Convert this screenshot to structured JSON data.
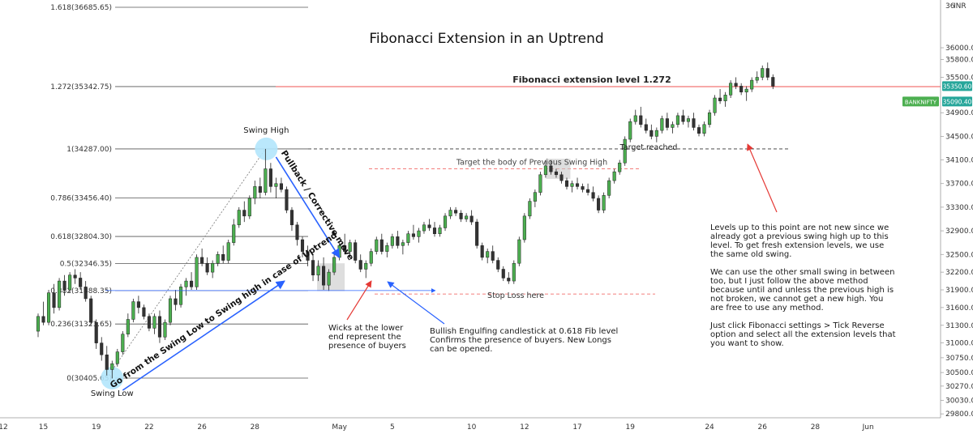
{
  "chart_data": {
    "type": "candlestick",
    "title": "Fibonacci Extension in an Uptrend",
    "symbol": "BANKNIFTY",
    "currency": "INR",
    "price_axis": {
      "ylim": [
        29800,
        36800
      ],
      "ticks": [
        {
          "value": 36000,
          "label": "36000.00"
        },
        {
          "value": 35800,
          "label": "35800.00"
        },
        {
          "value": 35500,
          "label": "35500.00"
        },
        {
          "value": 34900,
          "label": "34900.00"
        },
        {
          "value": 34500,
          "label": "34500.00"
        },
        {
          "value": 34100,
          "label": "34100.00"
        },
        {
          "value": 33700,
          "label": "33700.00"
        },
        {
          "value": 33300,
          "label": "33300.00"
        },
        {
          "value": 32900,
          "label": "32900.00"
        },
        {
          "value": 32500,
          "label": "32500.00"
        },
        {
          "value": 32200,
          "label": "32200.00"
        },
        {
          "value": 31900,
          "label": "31900.00"
        },
        {
          "value": 31600,
          "label": "31600.00"
        },
        {
          "value": 31300,
          "label": "31300.00"
        },
        {
          "value": 31000,
          "label": "31000.00"
        },
        {
          "value": 30750,
          "label": "30750.00"
        },
        {
          "value": 30500,
          "label": "30500.00"
        },
        {
          "value": 30270,
          "label": "30270.00"
        },
        {
          "value": 30030,
          "label": "30030.00"
        },
        {
          "value": 29800,
          "label": "29800.00"
        }
      ],
      "top_label": "36",
      "price_tags": [
        {
          "text": "35350.60",
          "value": 35350.6,
          "color": "#26a69a"
        },
        {
          "text": "BANKNIFTY",
          "value": 35090,
          "color": "#4caf50"
        },
        {
          "text": "35090.40",
          "value": 35090.4,
          "color": "#26a69a"
        }
      ]
    },
    "time_axis": {
      "ticks": [
        {
          "i": -8,
          "label": "12"
        },
        {
          "i": 1,
          "label": "15"
        },
        {
          "i": 11,
          "label": "19"
        },
        {
          "i": 21,
          "label": "22"
        },
        {
          "i": 31,
          "label": "26"
        },
        {
          "i": 41,
          "label": "28"
        },
        {
          "i": 57,
          "label": "May"
        },
        {
          "i": 67,
          "label": "5"
        },
        {
          "i": 82,
          "label": "10"
        },
        {
          "i": 92,
          "label": "12"
        },
        {
          "i": 102,
          "label": "17"
        },
        {
          "i": 112,
          "label": "19"
        },
        {
          "i": 127,
          "label": "24"
        },
        {
          "i": 137,
          "label": "26"
        },
        {
          "i": 147,
          "label": "28"
        },
        {
          "i": 157,
          "label": "Jun"
        }
      ]
    },
    "fib_levels": [
      {
        "label": "1.618(36685.65)",
        "value": 36685.65
      },
      {
        "label": "1.272(35342.75)",
        "value": 35342.75
      },
      {
        "label": "1(34287.00)",
        "value": 34287.0
      },
      {
        "label": "0.786(33456.40)",
        "value": 33456.4
      },
      {
        "label": "0.618(32804.30)",
        "value": 32804.3
      },
      {
        "label": "0.5(32346.35)",
        "value": 32346.35
      },
      {
        "label": "0.382(31888.35)",
        "value": 31888.35
      },
      {
        "label": "0.236(31321.65)",
        "value": 31321.65
      },
      {
        "label": "0(30405.65)",
        "value": 30405.65
      }
    ],
    "candles": [
      [
        31200,
        31500,
        31100,
        31450
      ],
      [
        31450,
        31700,
        31300,
        31350
      ],
      [
        31350,
        31900,
        31300,
        31850
      ],
      [
        31850,
        32000,
        31500,
        31600
      ],
      [
        31600,
        32100,
        31550,
        32050
      ],
      [
        32050,
        32150,
        31800,
        31900
      ],
      [
        31900,
        32200,
        31850,
        32150
      ],
      [
        32150,
        32250,
        32000,
        32100
      ],
      [
        32100,
        32200,
        31900,
        31950
      ],
      [
        31950,
        32050,
        31700,
        31750
      ],
      [
        31750,
        31800,
        31300,
        31350
      ],
      [
        31350,
        31400,
        30900,
        31000
      ],
      [
        31000,
        31100,
        30700,
        30800
      ],
      [
        30800,
        30950,
        30450,
        30550
      ],
      [
        30550,
        30700,
        30400,
        30650
      ],
      [
        30650,
        30900,
        30600,
        30850
      ],
      [
        30850,
        31200,
        30800,
        31150
      ],
      [
        31150,
        31500,
        31100,
        31400
      ],
      [
        31400,
        31750,
        31350,
        31700
      ],
      [
        31700,
        31800,
        31500,
        31600
      ],
      [
        31600,
        31650,
        31400,
        31450
      ],
      [
        31450,
        31500,
        31200,
        31250
      ],
      [
        31250,
        31500,
        31150,
        31450
      ],
      [
        31450,
        31550,
        31000,
        31100
      ],
      [
        31100,
        31400,
        31050,
        31350
      ],
      [
        31350,
        31800,
        31300,
        31750
      ],
      [
        31750,
        31900,
        31550,
        31650
      ],
      [
        31650,
        32000,
        31600,
        31950
      ],
      [
        31950,
        32100,
        31800,
        32050
      ],
      [
        32050,
        32200,
        31900,
        31950
      ],
      [
        31950,
        32500,
        31900,
        32450
      ],
      [
        32450,
        32600,
        32300,
        32350
      ],
      [
        32350,
        32450,
        32150,
        32200
      ],
      [
        32200,
        32400,
        32100,
        32350
      ],
      [
        32350,
        32550,
        32300,
        32500
      ],
      [
        32500,
        32650,
        32350,
        32400
      ],
      [
        32400,
        32750,
        32350,
        32700
      ],
      [
        32700,
        33100,
        32650,
        33000
      ],
      [
        33000,
        33300,
        32950,
        33250
      ],
      [
        33250,
        33400,
        33050,
        33150
      ],
      [
        33150,
        33500,
        33100,
        33450
      ],
      [
        33450,
        33750,
        33350,
        33650
      ],
      [
        33650,
        33800,
        33450,
        33550
      ],
      [
        33550,
        34287,
        33500,
        33950
      ],
      [
        33950,
        34050,
        33550,
        33650
      ],
      [
        33650,
        33800,
        33450,
        33700
      ],
      [
        33700,
        33800,
        33550,
        33600
      ],
      [
        33600,
        33650,
        33200,
        33250
      ],
      [
        33250,
        33300,
        32900,
        33000
      ],
      [
        33000,
        33050,
        32650,
        32750
      ],
      [
        32750,
        32800,
        32450,
        32550
      ],
      [
        32550,
        32650,
        32300,
        32400
      ],
      [
        32400,
        32500,
        32050,
        32150
      ],
      [
        32150,
        32400,
        32050,
        32300
      ],
      [
        32300,
        32450,
        31900,
        31980
      ],
      [
        31980,
        32250,
        31880,
        32200
      ],
      [
        32200,
        32500,
        32150,
        32450
      ],
      [
        32450,
        32700,
        32400,
        32650
      ],
      [
        32650,
        32850,
        32500,
        32550
      ],
      [
        32550,
        32750,
        32450,
        32700
      ],
      [
        32700,
        32750,
        32350,
        32400
      ],
      [
        32400,
        32500,
        32200,
        32250
      ],
      [
        32250,
        32400,
        32100,
        32350
      ],
      [
        32350,
        32600,
        32300,
        32550
      ],
      [
        32550,
        32800,
        32500,
        32750
      ],
      [
        32750,
        32850,
        32500,
        32550
      ],
      [
        32550,
        32700,
        32450,
        32650
      ],
      [
        32650,
        32850,
        32600,
        32800
      ],
      [
        32800,
        32900,
        32600,
        32650
      ],
      [
        32650,
        32750,
        32500,
        32700
      ],
      [
        32700,
        32900,
        32650,
        32850
      ],
      [
        32850,
        33000,
        32750,
        32800
      ],
      [
        32800,
        32950,
        32700,
        32900
      ],
      [
        32900,
        33050,
        32850,
        33000
      ],
      [
        33000,
        33100,
        32900,
        32950
      ],
      [
        32950,
        33050,
        32800,
        32850
      ],
      [
        32850,
        33000,
        32800,
        32950
      ],
      [
        32950,
        33200,
        32900,
        33150
      ],
      [
        33150,
        33300,
        33100,
        33250
      ],
      [
        33250,
        33300,
        33150,
        33200
      ],
      [
        33200,
        33250,
        33050,
        33100
      ],
      [
        33100,
        33200,
        33050,
        33150
      ],
      [
        33150,
        33250,
        33000,
        33050
      ],
      [
        33050,
        33100,
        32600,
        32650
      ],
      [
        32650,
        32700,
        32400,
        32450
      ],
      [
        32450,
        32600,
        32350,
        32550
      ],
      [
        32550,
        32650,
        32350,
        32400
      ],
      [
        32400,
        32450,
        32200,
        32250
      ],
      [
        32250,
        32300,
        32050,
        32100
      ],
      [
        32100,
        32200,
        32000,
        32050
      ],
      [
        32050,
        32400,
        32000,
        32350
      ],
      [
        32350,
        32800,
        32300,
        32750
      ],
      [
        32750,
        33200,
        32700,
        33150
      ],
      [
        33150,
        33450,
        33100,
        33400
      ],
      [
        33400,
        33600,
        33300,
        33550
      ],
      [
        33550,
        33900,
        33500,
        33850
      ],
      [
        33850,
        34100,
        33800,
        34000
      ],
      [
        34000,
        34100,
        33850,
        33900
      ],
      [
        33900,
        33950,
        33800,
        33850
      ],
      [
        33850,
        33900,
        33700,
        33750
      ],
      [
        33750,
        33800,
        33600,
        33650
      ],
      [
        33650,
        33750,
        33550,
        33700
      ],
      [
        33700,
        33800,
        33600,
        33650
      ],
      [
        33650,
        33700,
        33550,
        33600
      ],
      [
        33600,
        33700,
        33500,
        33550
      ],
      [
        33550,
        33650,
        33400,
        33450
      ],
      [
        33450,
        33500,
        33200,
        33250
      ],
      [
        33250,
        33550,
        33200,
        33500
      ],
      [
        33500,
        33800,
        33450,
        33750
      ],
      [
        33750,
        33950,
        33700,
        33900
      ],
      [
        33900,
        34100,
        33850,
        34050
      ],
      [
        34050,
        34500,
        34000,
        34450
      ],
      [
        34450,
        34800,
        34400,
        34750
      ],
      [
        34750,
        34950,
        34700,
        34850
      ],
      [
        34850,
        35000,
        34650,
        34700
      ],
      [
        34700,
        34800,
        34550,
        34600
      ],
      [
        34600,
        34700,
        34450,
        34500
      ],
      [
        34500,
        34650,
        34400,
        34600
      ],
      [
        34600,
        34850,
        34550,
        34800
      ],
      [
        34800,
        34900,
        34600,
        34650
      ],
      [
        34650,
        34750,
        34550,
        34700
      ],
      [
        34700,
        34900,
        34650,
        34850
      ],
      [
        34850,
        34950,
        34700,
        34750
      ],
      [
        34750,
        34850,
        34650,
        34800
      ],
      [
        34800,
        34900,
        34600,
        34650
      ],
      [
        34650,
        34700,
        34500,
        34550
      ],
      [
        34550,
        34750,
        34500,
        34700
      ],
      [
        34700,
        34950,
        34650,
        34900
      ],
      [
        34900,
        35200,
        34850,
        35150
      ],
      [
        35150,
        35300,
        35050,
        35100
      ],
      [
        35100,
        35250,
        35000,
        35200
      ],
      [
        35200,
        35450,
        35150,
        35400
      ],
      [
        35400,
        35500,
        35300,
        35350
      ],
      [
        35350,
        35400,
        35200,
        35250
      ],
      [
        35250,
        35350,
        35100,
        35300
      ],
      [
        35300,
        35500,
        35250,
        35450
      ],
      [
        35450,
        35600,
        35400,
        35500
      ],
      [
        35500,
        35700,
        35450,
        35650
      ],
      [
        35650,
        35750,
        35450,
        35500
      ],
      [
        35500,
        35550,
        35300,
        35350
      ]
    ],
    "annotations": {
      "swing_high": "Swing High",
      "swing_low": "Swing Low",
      "ext_label": "Fibonacci extension level 1.272",
      "target_body": "Target the body of Previous Swing High",
      "target_reached": "Target reached",
      "stop_loss": "Stop Loss here",
      "pullback": "Pullback / Corrective move",
      "go_from": "Go from the Swing Low to Swing high in case of Uptrend",
      "wicks_note": [
        "Wicks at the lower",
        "end represent the",
        "presence of buyers"
      ],
      "engulfing_note": [
        "Bullish Engulfing candlestick at 0.618 Fib level",
        "Confirms the presence of buyers. New Longs",
        "can be opened."
      ],
      "levels_note": [
        "Levels up to this point are not new since we",
        "already got a previous swing high up to this",
        "level. To get fresh extension levels, we use",
        "the same old swing.",
        "",
        "We can use the other small swing in between",
        "too, but I just follow the above method",
        "because until and unless the previous high is",
        "not broken, we cannot get a new high. You",
        "are free to use any method.",
        "",
        "Just click Fibonacci settings > Tick Reverse",
        "option and select all the extension levels that",
        "you want to show."
      ]
    },
    "colors": {
      "up": "#4caf50",
      "down": "#333333",
      "ext_line": "#ef5350",
      "stop_loss": "#ef5350",
      "arrow_blue": "#2962ff",
      "arrow_red": "#e53935",
      "highlight": "#b3e5fc"
    }
  }
}
